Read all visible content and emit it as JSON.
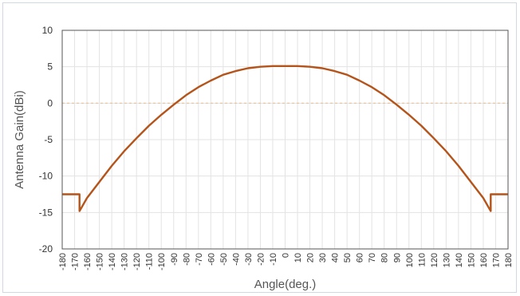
{
  "chart_data": {
    "type": "line",
    "title": "",
    "xlabel": "Angle(deg.)",
    "ylabel": "Antenna Gain(dBi)",
    "xlim": [
      -180,
      180
    ],
    "ylim": [
      -20,
      10
    ],
    "xticks": [
      -180,
      -170,
      -160,
      -150,
      -140,
      -130,
      -120,
      -110,
      -100,
      -90,
      -80,
      -70,
      -60,
      -50,
      -40,
      -30,
      -20,
      -10,
      0,
      10,
      20,
      30,
      40,
      50,
      60,
      70,
      80,
      90,
      100,
      110,
      120,
      130,
      140,
      150,
      160,
      170,
      180
    ],
    "yticks": [
      -20,
      -15,
      -10,
      -5,
      0,
      5,
      10
    ],
    "grid": true,
    "legend": "none",
    "colors": {
      "line": "#b4541a",
      "grid": "#e3e3e3",
      "zero_line": "#e8c39a"
    },
    "series": [
      {
        "x": [
          -180,
          -166,
          -166,
          -165,
          -160,
          -150,
          -140,
          -130,
          -120,
          -110,
          -100,
          -90,
          -80,
          -70,
          -60,
          -50,
          -40,
          -30,
          -20,
          -10,
          0,
          10,
          20,
          30,
          40,
          50,
          60,
          70,
          80,
          90,
          100,
          110,
          120,
          130,
          140,
          150,
          160,
          165,
          166,
          166,
          180
        ],
        "y": [
          -12.5,
          -12.5,
          -14.8,
          -14.5,
          -13.0,
          -10.8,
          -8.6,
          -6.6,
          -4.8,
          -3.1,
          -1.6,
          -0.2,
          1.1,
          2.2,
          3.1,
          3.9,
          4.4,
          4.8,
          5.0,
          5.1,
          5.1,
          5.1,
          5.0,
          4.8,
          4.4,
          3.9,
          3.1,
          2.2,
          1.1,
          -0.2,
          -1.6,
          -3.1,
          -4.8,
          -6.6,
          -8.6,
          -10.8,
          -13.0,
          -14.5,
          -14.8,
          -12.5,
          -12.5
        ]
      }
    ]
  }
}
